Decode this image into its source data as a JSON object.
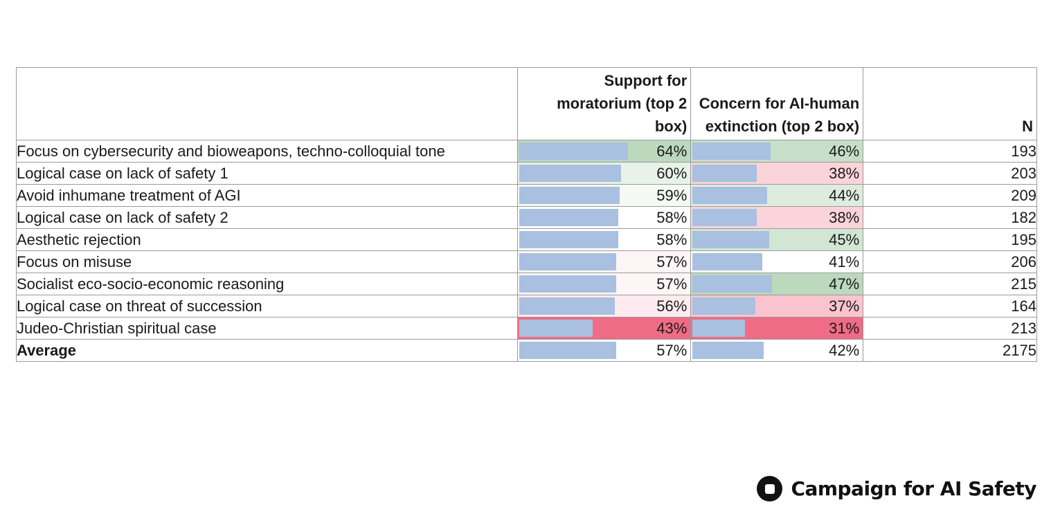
{
  "chart_data": {
    "type": "table",
    "columns": [
      "",
      "Support for moratorium (top 2 box)",
      "Concern for AI-human extinction (top 2 box)",
      "N"
    ],
    "rows": [
      {
        "label": "Focus on cybersecurity and bioweapons, techno-colloquial tone",
        "moratorium": "64%",
        "extinction": "46%",
        "n": "193"
      },
      {
        "label": "Logical case on lack of safety 1",
        "moratorium": "60%",
        "extinction": "38%",
        "n": "203"
      },
      {
        "label": "Avoid inhumane treatment of AGI",
        "moratorium": "59%",
        "extinction": "44%",
        "n": "209"
      },
      {
        "label": "Logical case on lack of safety 2",
        "moratorium": "58%",
        "extinction": "38%",
        "n": "182"
      },
      {
        "label": "Aesthetic rejection",
        "moratorium": "58%",
        "extinction": "45%",
        "n": "195"
      },
      {
        "label": "Focus on misuse",
        "moratorium": "57%",
        "extinction": "41%",
        "n": "206"
      },
      {
        "label": "Socialist eco-socio-economic reasoning",
        "moratorium": "57%",
        "extinction": "47%",
        "n": "215"
      },
      {
        "label": "Logical case on threat of succession",
        "moratorium": "56%",
        "extinction": "37%",
        "n": "164"
      },
      {
        "label": "Judeo-Christian spiritual case",
        "moratorium": "43%",
        "extinction": "31%",
        "n": "213"
      }
    ],
    "average": {
      "label": "Average",
      "moratorium": "57%",
      "extinction": "42%",
      "n": "2175"
    },
    "moratorium_values": [
      64,
      60,
      59,
      58,
      58,
      57,
      57,
      56,
      43
    ],
    "extinction_values": [
      46,
      38,
      44,
      38,
      45,
      41,
      47,
      37,
      31
    ],
    "average_values": {
      "moratorium": 57,
      "extinction": 42
    },
    "bar_scale_max": 100,
    "colors": {
      "bar": "#a9c0e0",
      "high": "#bcd9bd",
      "neutral": "#ffffff",
      "low": "#f06b85"
    }
  },
  "brand": {
    "name": "Campaign for AI Safety",
    "icon": "campaign-logo-icon"
  }
}
